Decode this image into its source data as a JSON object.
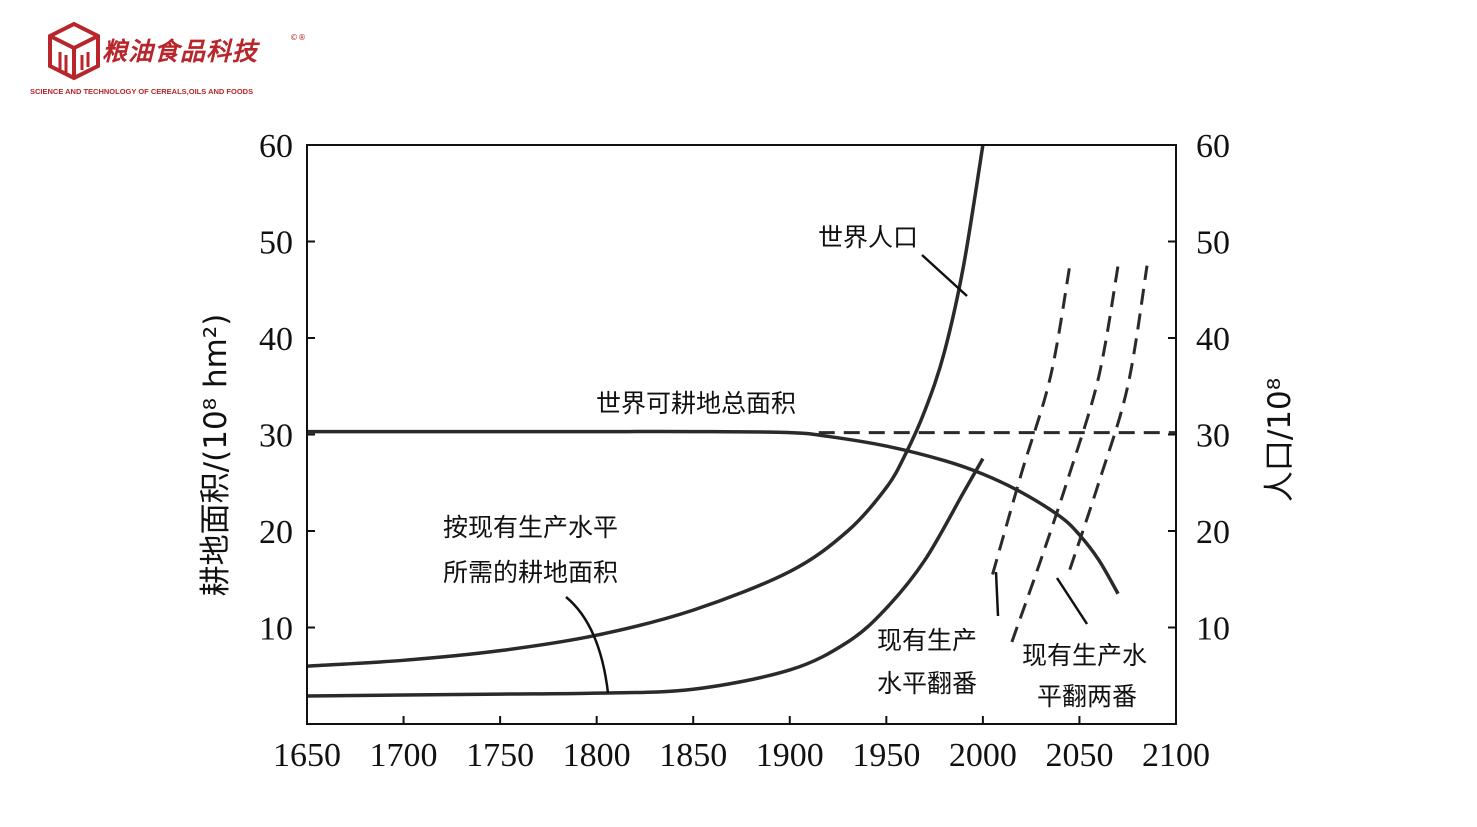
{
  "logo": {
    "name_cn": "粮油食品科技",
    "reg_mark": "©®",
    "name_en": "SCIENCE AND TECHNOLOGY OF CEREALS,OILS AND FOODS",
    "color": "#b8262b"
  },
  "chart_data": {
    "type": "line",
    "title": "",
    "xlabel": "",
    "ylabel_left": "耕地面积/(10⁸ hm²)",
    "ylabel_right": "人口/10⁸",
    "xlim": [
      1650,
      2100
    ],
    "ylim": [
      0,
      60
    ],
    "x_ticks": [
      "1650",
      "1700",
      "1750",
      "1800",
      "1850",
      "1900",
      "1950",
      "2000",
      "2050",
      "2100"
    ],
    "y_ticks_left": [
      "10",
      "20",
      "30",
      "40",
      "50",
      "60"
    ],
    "y_ticks_right": [
      "10",
      "20",
      "30",
      "40",
      "50",
      "60"
    ],
    "series": [
      {
        "label": "世界人口",
        "style": "solid",
        "x": [
          1650,
          1700,
          1750,
          1800,
          1850,
          1900,
          1930,
          1950,
          1960,
          1970,
          1980,
          1990,
          2000
        ],
        "y": [
          6.0,
          6.6,
          7.6,
          9.2,
          11.8,
          15.8,
          20.0,
          24.5,
          28.0,
          32.5,
          38.5,
          47.5,
          60.0
        ]
      },
      {
        "label": "世界可耕地总面积",
        "style": "solid",
        "x": [
          1650,
          1700,
          1750,
          1800,
          1850,
          1900,
          1920,
          1950,
          1980,
          2000,
          2020,
          2040,
          2050,
          2060,
          2070
        ],
        "y": [
          30.3,
          30.3,
          30.3,
          30.3,
          30.3,
          30.2,
          29.8,
          28.8,
          27.3,
          25.9,
          24.0,
          21.5,
          19.6,
          17.0,
          13.5
        ]
      },
      {
        "label": "世界可耕地总面积",
        "style": "dashed",
        "x": [
          1915,
          2100
        ],
        "y": [
          30.2,
          30.2
        ]
      },
      {
        "label": "按现有生产水平所需的耕地面积",
        "style": "solid",
        "x": [
          1650,
          1700,
          1750,
          1800,
          1850,
          1900,
          1930,
          1950,
          1970,
          1990,
          2000
        ],
        "y": [
          2.9,
          3.0,
          3.1,
          3.2,
          3.6,
          5.6,
          8.5,
          12.0,
          17.0,
          24.0,
          27.5
        ]
      },
      {
        "label": "现有生产水平翻番",
        "style": "dashed",
        "x": [
          2005,
          2020,
          2035,
          2045
        ],
        "y": [
          15.5,
          26.0,
          36.0,
          47.5
        ]
      },
      {
        "label": "现有生产水平翻两番",
        "style": "dashed",
        "x": [
          2015,
          2030,
          2045,
          2060,
          2070
        ],
        "y": [
          8.5,
          17.0,
          26.0,
          36.0,
          47.5
        ]
      },
      {
        "label": "现有生产水平翻两番",
        "style": "dashed",
        "x": [
          2045,
          2060,
          2075,
          2085
        ],
        "y": [
          16.0,
          25.0,
          35.0,
          47.5
        ]
      }
    ],
    "annotations": [
      {
        "text": "世界人口"
      },
      {
        "text": "世界可耕地总面积"
      },
      {
        "line1": "按现有生产水平",
        "line2": "所需的耕地面积"
      },
      {
        "line1": "现有生产",
        "line2": "水平翻番"
      },
      {
        "line1": "现有生产水",
        "line2": "平翻两番"
      }
    ]
  }
}
